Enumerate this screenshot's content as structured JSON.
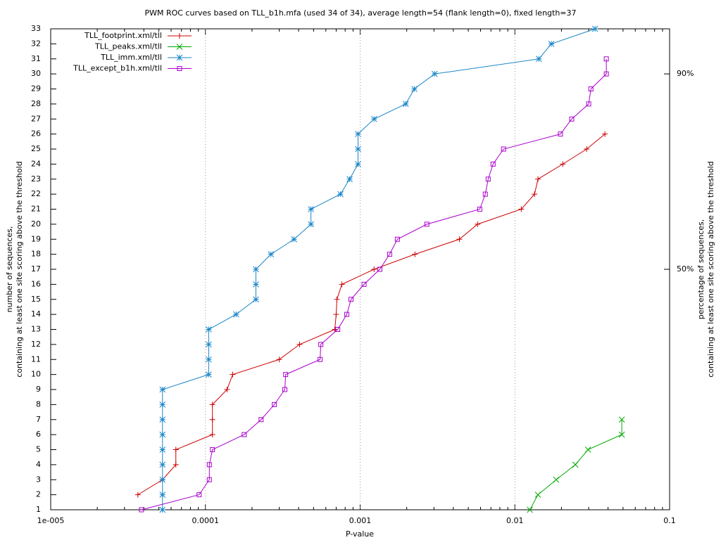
{
  "chart_data": {
    "type": "line",
    "title": "PWM ROC curves based on TLL_b1h.mfa (used 34 of 34), average length=54 (flank length=0), fixed length=37",
    "xlabel": "P-value",
    "ylabel": [
      "number of sequences,",
      "containing at least one site scoring above the threshold"
    ],
    "y2label": [
      "percentage of sequences,",
      "containing at least one site scoring above the threshold"
    ],
    "xscale": "log",
    "grid": "x",
    "legend": "top-left",
    "xlim": [
      1e-05,
      0.1
    ],
    "xticks": [
      {
        "value": 1e-05,
        "label": "1e-005"
      },
      0.0001,
      0.001,
      0.01,
      0.1
    ],
    "ylim": [
      1,
      33
    ],
    "yticks": [
      1,
      2,
      3,
      4,
      5,
      6,
      7,
      8,
      9,
      10,
      11,
      12,
      13,
      14,
      15,
      16,
      17,
      18,
      19,
      20,
      21,
      22,
      23,
      24,
      25,
      26,
      27,
      28,
      29,
      30,
      31,
      32,
      33
    ],
    "y2lim": [
      0.77,
      99.23
    ],
    "y2ticks": [
      {
        "value": 50,
        "label": "50%"
      },
      {
        "value": 90,
        "label": "90%"
      }
    ],
    "series": [
      {
        "name": "TLL_footprint.xml/tll",
        "color": "#cc0000",
        "marker": "plus",
        "x": [
          3.66e-05,
          5.28e-05,
          6.44e-05,
          6.44e-05,
          0.000111,
          0.000111,
          0.000111,
          0.000138,
          0.00015,
          0.0003,
          0.000406,
          0.000686,
          0.0007,
          0.000708,
          0.000762,
          0.00123,
          0.00226,
          0.00438,
          0.00574,
          0.011,
          0.0134,
          0.0141,
          0.0204,
          0.0291,
          0.0382
        ],
        "values": [
          2,
          3,
          4,
          5,
          6,
          7,
          8,
          9,
          10,
          11,
          12,
          13,
          14,
          15,
          16,
          17,
          18,
          19,
          20,
          21,
          22,
          23,
          24,
          25,
          26
        ]
      },
      {
        "name": "TLL_peaks.xml/tll",
        "color": "#00aa00",
        "marker": "cross",
        "x": [
          0.0125,
          0.0141,
          0.0185,
          0.0246,
          0.0297,
          0.0491,
          0.0491
        ],
        "values": [
          1,
          2,
          3,
          4,
          5,
          6,
          7
        ]
      },
      {
        "name": "TLL_imm.xml/tll",
        "color": "#1a86c8",
        "marker": "star",
        "x": [
          5.28e-05,
          5.28e-05,
          5.28e-05,
          5.28e-05,
          5.28e-05,
          5.28e-05,
          5.28e-05,
          5.28e-05,
          5.28e-05,
          0.000105,
          0.000105,
          0.000105,
          0.000105,
          0.000158,
          0.000212,
          0.000212,
          0.000212,
          0.000265,
          0.000374,
          0.000481,
          0.000481,
          0.000746,
          0.000855,
          0.000969,
          0.000969,
          0.000969,
          0.00123,
          0.00197,
          0.00224,
          0.00303,
          0.0143,
          0.0172,
          0.033
        ],
        "values": [
          1,
          2,
          3,
          4,
          5,
          6,
          7,
          8,
          9,
          10,
          11,
          12,
          13,
          14,
          15,
          16,
          17,
          18,
          19,
          20,
          21,
          22,
          23,
          24,
          25,
          26,
          27,
          28,
          29,
          30,
          31,
          32,
          33
        ]
      },
      {
        "name": "TLL_except_b1h.xml/tll",
        "color": "#aa00cc",
        "marker": "square",
        "x": [
          3.86e-05,
          9.1e-05,
          0.000106,
          0.000106,
          0.000111,
          0.000178,
          0.000229,
          0.000279,
          0.000326,
          0.00033,
          0.000551,
          0.000557,
          0.000716,
          0.00082,
          0.000873,
          0.00106,
          0.00134,
          0.00155,
          0.00174,
          0.0027,
          0.00593,
          0.00644,
          0.00672,
          0.00723,
          0.00845,
          0.0197,
          0.0233,
          0.03,
          0.031,
          0.039,
          0.039
        ],
        "values": [
          1,
          2,
          3,
          4,
          5,
          6,
          7,
          8,
          9,
          10,
          11,
          12,
          13,
          14,
          15,
          16,
          17,
          18,
          19,
          20,
          21,
          22,
          23,
          24,
          25,
          26,
          27,
          28,
          29,
          30,
          31
        ]
      }
    ]
  }
}
